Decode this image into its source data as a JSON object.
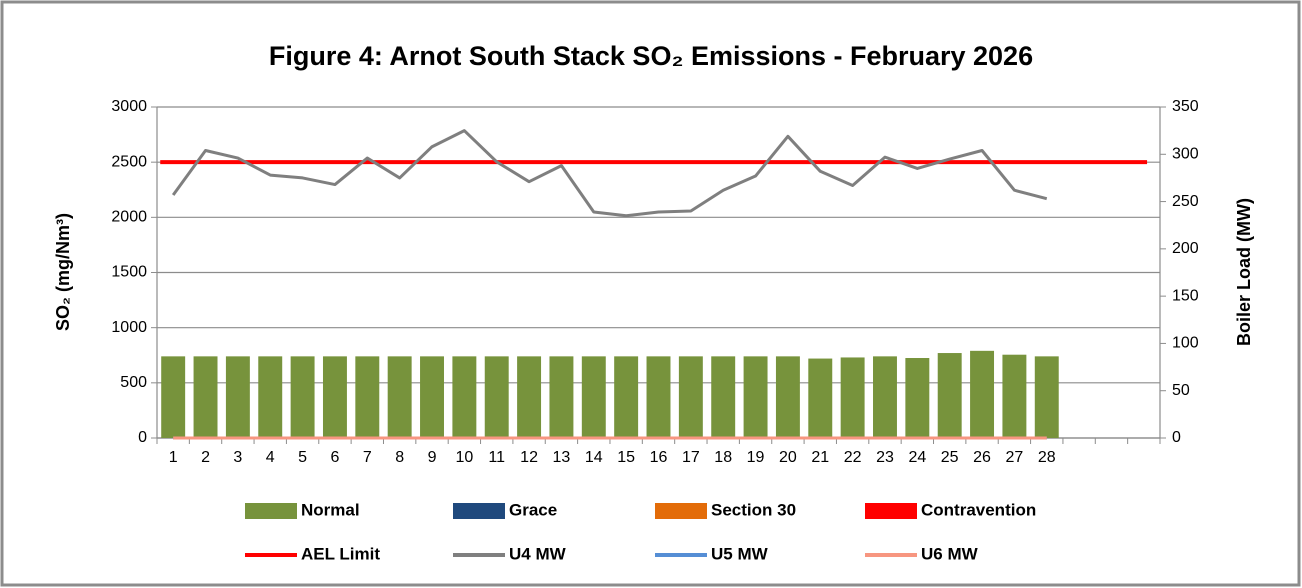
{
  "chart_data": {
    "type": "bar-line",
    "title": "Figure 4: Arnot South Stack SO₂ Emissions - February 2026",
    "y_label": "SO₂  (mg/Nm³)",
    "y2_label": "Boiler Load (MW)",
    "categories": [
      "1",
      "2",
      "3",
      "4",
      "5",
      "6",
      "7",
      "8",
      "9",
      "10",
      "11",
      "12",
      "13",
      "14",
      "15",
      "16",
      "17",
      "18",
      "19",
      "20",
      "21",
      "22",
      "23",
      "24",
      "25",
      "26",
      "27",
      "28",
      null,
      null,
      null
    ],
    "ylim": [
      0,
      3000
    ],
    "yticks": [
      0,
      500,
      1000,
      1500,
      2000,
      2500,
      3000
    ],
    "y2lim": [
      0,
      350
    ],
    "y2ticks": [
      0,
      50,
      100,
      150,
      200,
      250,
      300,
      350
    ],
    "grid": true,
    "legend": "bottom",
    "series": [
      {
        "name": "Normal",
        "type": "bar",
        "color": "#77933c",
        "values": [
          740,
          740,
          740,
          740,
          740,
          740,
          740,
          740,
          740,
          740,
          740,
          740,
          740,
          740,
          740,
          740,
          740,
          740,
          740,
          740,
          720,
          730,
          740,
          725,
          770,
          790,
          755,
          740,
          null,
          null,
          null
        ]
      },
      {
        "name": "Grace",
        "type": "bar",
        "color": "#1f497d",
        "values": [
          0,
          0,
          0,
          0,
          0,
          0,
          0,
          0,
          0,
          0,
          0,
          0,
          0,
          0,
          0,
          0,
          0,
          0,
          0,
          0,
          0,
          0,
          0,
          0,
          0,
          0,
          0,
          0,
          null,
          null,
          null
        ]
      },
      {
        "name": "Section 30",
        "type": "bar",
        "color": "#e36c09",
        "values": [
          0,
          0,
          0,
          0,
          0,
          0,
          0,
          0,
          0,
          0,
          0,
          0,
          0,
          0,
          0,
          0,
          0,
          0,
          0,
          0,
          0,
          0,
          0,
          0,
          0,
          0,
          0,
          0,
          null,
          null,
          null
        ]
      },
      {
        "name": "Contravention",
        "type": "bar",
        "color": "#ff0000",
        "values": [
          0,
          0,
          0,
          0,
          0,
          0,
          0,
          0,
          0,
          0,
          0,
          0,
          0,
          0,
          0,
          0,
          0,
          0,
          0,
          0,
          0,
          0,
          0,
          0,
          0,
          0,
          0,
          0,
          null,
          null,
          null
        ]
      },
      {
        "name": "AEL Limit",
        "type": "line",
        "color": "#ff0000",
        "values": [
          2500,
          2500,
          2500,
          2500,
          2500,
          2500,
          2500,
          2500,
          2500,
          2500,
          2500,
          2500,
          2500,
          2500,
          2500,
          2500,
          2500,
          2500,
          2500,
          2500,
          2500,
          2500,
          2500,
          2500,
          2500,
          2500,
          2500,
          2500,
          2500,
          2500,
          2500
        ]
      },
      {
        "name": "U4 MW",
        "type": "line",
        "color": "#7f7f7f",
        "axis": "y2",
        "values": [
          257,
          304,
          296,
          278,
          275,
          268,
          296,
          275,
          308,
          325,
          292,
          271,
          288,
          239,
          235,
          239,
          240,
          262,
          277,
          319,
          282,
          267,
          297,
          285,
          295,
          304,
          262,
          253,
          null,
          null,
          null
        ]
      },
      {
        "name": "U5 MW",
        "type": "line",
        "color": "#558ed5",
        "axis": "y2",
        "values": [
          0,
          0,
          0,
          0,
          0,
          0,
          0,
          0,
          0,
          0,
          0,
          0,
          0,
          0,
          0,
          0,
          0,
          0,
          0,
          0,
          0,
          0,
          0,
          0,
          0,
          0,
          0,
          0,
          null,
          null,
          null
        ]
      },
      {
        "name": "U6 MW",
        "type": "line",
        "color": "#f79680",
        "axis": "y2",
        "values": [
          0,
          0,
          0,
          0,
          0,
          0,
          0,
          0,
          0,
          0,
          0,
          0,
          0,
          0,
          0,
          0,
          0,
          0,
          0,
          0,
          0,
          0,
          0,
          0,
          0,
          0,
          0,
          0,
          null,
          null,
          null
        ]
      }
    ]
  }
}
